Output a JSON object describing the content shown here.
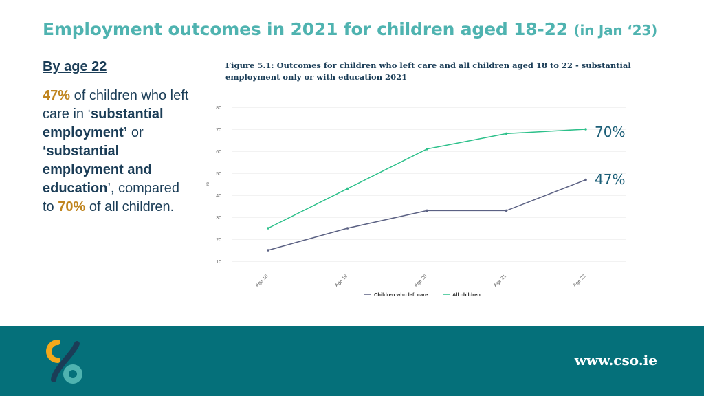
{
  "header": {
    "title": "Employment outcomes in 2021 for children aged 18-22",
    "title_sub": "(in Jan ‘23)"
  },
  "text_panel": {
    "subheading": "By age 22",
    "pct1": "47%",
    "p1": " of children who left care in ‘",
    "b1": "substantial employment’",
    "p2": " or ",
    "b2": "‘substantial employment and education",
    "p3": "’, compared to ",
    "pct2": "70%",
    "p4": " of all children."
  },
  "figure": {
    "title": "Figure 5.1: Outcomes for children who left care and all children aged 18 to 22 - substantial employment only or with education 2021"
  },
  "annotations": {
    "all_children": "70%",
    "left_care": "47%"
  },
  "chart_data": {
    "type": "line",
    "categories": [
      "Age 18",
      "Age 19",
      "Age 20",
      "Age 21",
      "Age 22"
    ],
    "series": [
      {
        "name": "Children who left care",
        "values": [
          15,
          25,
          33,
          33,
          47
        ],
        "color": "#5b6183"
      },
      {
        "name": "All children",
        "values": [
          25,
          43,
          61,
          68,
          70
        ],
        "color": "#2cc08a"
      }
    ],
    "ylabel": "%",
    "xlabel": "",
    "ylim": [
      10,
      80
    ],
    "yticks": [
      10,
      20,
      30,
      40,
      50,
      60,
      70,
      80
    ],
    "grid": true,
    "legend": "bottom"
  },
  "footer": {
    "website": "www.cso.ie"
  },
  "colors": {
    "title": "#4fb3b0",
    "text": "#1b3d57",
    "highlight": "#c0851f",
    "footer_bg": "#05707a",
    "logo_orange": "#f3a81b",
    "logo_teal": "#4fb3b0",
    "logo_navy": "#1b3d57"
  }
}
